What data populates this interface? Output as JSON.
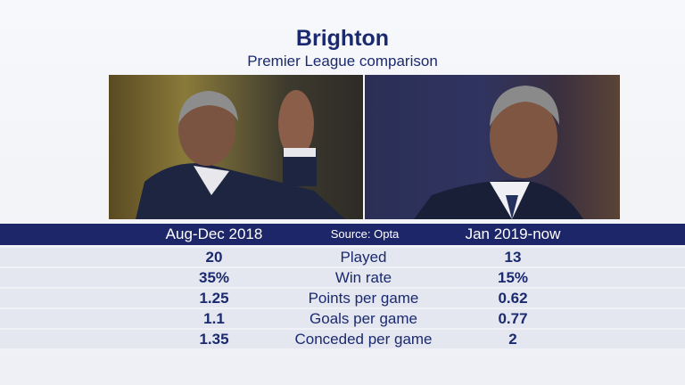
{
  "header": {
    "title": "Brighton",
    "subtitle": "Premier League comparison"
  },
  "columns": {
    "left": "Aug-Dec 2018",
    "source": "Source: Opta",
    "right": "Jan 2019-now"
  },
  "rows": [
    {
      "left": "20",
      "label": "Played",
      "right": "13"
    },
    {
      "left": "35%",
      "label": "Win rate",
      "right": "15%"
    },
    {
      "left": "1.25",
      "label": "Points per game",
      "right": "0.62"
    },
    {
      "left": "1.1",
      "label": "Goals per game",
      "right": "0.77"
    },
    {
      "left": "1.35",
      "label": "Conceded per game",
      "right": "2"
    }
  ],
  "colors": {
    "navy": "#1d2668",
    "row_bg": "#e4e7f0"
  }
}
